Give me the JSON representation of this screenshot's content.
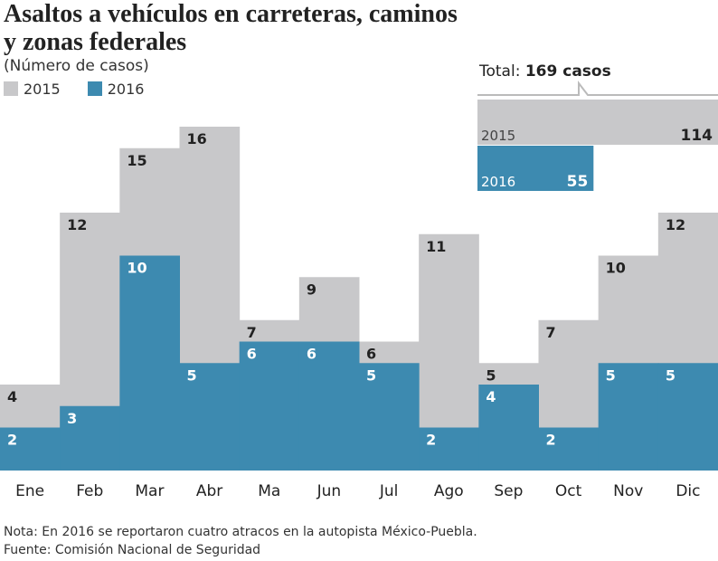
{
  "chart_data": {
    "type": "bar",
    "title": "Asaltos a vehículos en carreteras, caminos y zonas federales",
    "subtitle": "(Número de casos)",
    "categories": [
      "Ene",
      "Feb",
      "Mar",
      "Abr",
      "Ma",
      "Jun",
      "Jul",
      "Ago",
      "Sep",
      "Oct",
      "Nov",
      "Dic"
    ],
    "series": [
      {
        "name": "2015",
        "color": "#c8c8ca",
        "values": [
          4,
          12,
          15,
          16,
          7,
          9,
          6,
          11,
          5,
          7,
          10,
          12
        ]
      },
      {
        "name": "2016",
        "color": "#3d8ab0",
        "values": [
          2,
          3,
          10,
          5,
          6,
          6,
          5,
          2,
          4,
          2,
          5,
          5
        ]
      }
    ],
    "ylim": [
      0,
      16
    ],
    "grid": false,
    "legend": "top-left",
    "totals": {
      "label": "Total:",
      "value": "169 casos",
      "items": [
        {
          "name": "2015",
          "value": 114,
          "color": "#c8c8ca"
        },
        {
          "name": "2016",
          "value": 55,
          "color": "#3d8ab0"
        }
      ]
    }
  },
  "notes": {
    "nota": "Nota: En 2016 se reportaron cuatro atracos en la autopista México-Puebla.",
    "fuente": "Fuente: Comisión Nacional de Seguridad"
  }
}
